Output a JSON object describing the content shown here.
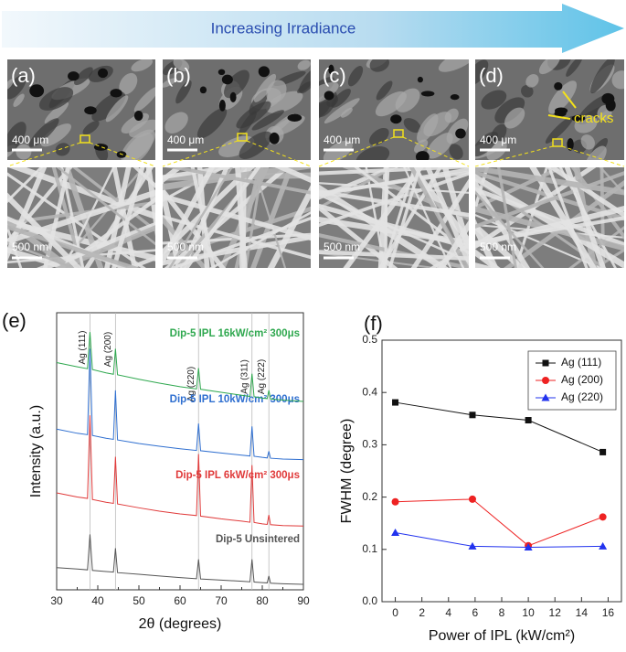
{
  "figure": {
    "arrow_text": "Increasing Irradiance",
    "panels": [
      {
        "label": "(a)",
        "scale_top": "400 μm",
        "scale_bottom": "500 nm"
      },
      {
        "label": "(b)",
        "scale_top": "400 μm",
        "scale_bottom": "500 nm"
      },
      {
        "label": "(c)",
        "scale_top": "400 μm",
        "scale_bottom": "500 nm"
      },
      {
        "label": "(d)",
        "scale_top": "400 μm",
        "scale_bottom": "500 nm"
      }
    ],
    "annotation": "cracks"
  },
  "chart_data": [
    {
      "type": "line",
      "panel_label": "(e)",
      "xlabel": "2θ  (degrees)",
      "ylabel": "Intensity (a.u.)",
      "x": [
        30,
        35,
        37.5,
        38.1,
        38.7,
        42,
        43.8,
        44.3,
        44.8,
        50,
        55,
        60,
        64.0,
        64.5,
        65.0,
        70,
        75,
        77.0,
        77.5,
        78.0,
        80,
        81.2,
        81.6,
        82.0,
        85,
        90
      ],
      "series": [
        {
          "name": "Dip-5  Unsintered",
          "color": "#555555",
          "values": [
            8,
            7.5,
            7.2,
            20,
            7,
            6.6,
            6.4,
            15,
            6.2,
            5.6,
            5,
            4.4,
            4,
            11,
            3.9,
            3.5,
            3.1,
            2.9,
            11,
            2.8,
            2.6,
            2.5,
            5,
            2.4,
            2.2,
            2
          ]
        },
        {
          "name": "Dip-5  IPL   6kW/cm² 300μs",
          "color": "#e03a3a",
          "values": [
            35,
            33.5,
            33,
            63,
            32.6,
            31.6,
            31.2,
            48,
            31,
            29.6,
            28.4,
            27.4,
            26.8,
            49,
            26.6,
            25.6,
            24.8,
            24.4,
            45,
            24.3,
            23.8,
            23.6,
            27,
            23.5,
            23.2,
            23
          ]
        },
        {
          "name": "Dip-5  IPL 10kW/cm² 300μs",
          "color": "#2f6fd0",
          "values": [
            58,
            56.5,
            56,
            87,
            55.7,
            54.7,
            54.3,
            72,
            54.1,
            52.8,
            51.8,
            50.9,
            50.3,
            60,
            50.2,
            49.4,
            48.6,
            48.3,
            59,
            48.2,
            47.8,
            47.6,
            50,
            47.5,
            47.2,
            47
          ]
        },
        {
          "name": "Dip-5  IPL 16kW/cm² 300μs",
          "color": "#2fa84f",
          "values": [
            82,
            80.5,
            79.8,
            93,
            79.5,
            78.3,
            77.8,
            87,
            77.6,
            76,
            74.6,
            73.3,
            72.5,
            80,
            72.4,
            71.3,
            70.2,
            69.8,
            78,
            69.7,
            69.2,
            69,
            72,
            68.9,
            68.5,
            68
          ]
        }
      ],
      "xlim": [
        30,
        90
      ],
      "ylim": [
        0,
        100
      ],
      "xticks": [
        30,
        40,
        50,
        60,
        70,
        80,
        90
      ],
      "xticks_minor": [
        35,
        45,
        55,
        65,
        75,
        85
      ],
      "reference_lines": [
        38.1,
        44.3,
        64.5,
        77.5,
        81.6
      ],
      "peak_labels": [
        "Ag (111)",
        "Ag (200)",
        "Ag (220)",
        "Ag (311)",
        "Ag (222)"
      ]
    },
    {
      "type": "line",
      "panel_label": "(f)",
      "xlabel": "Power of IPL (kW/cm²)",
      "ylabel": "FWHM (degree)",
      "x": [
        0,
        5.8,
        10,
        15.6
      ],
      "series": [
        {
          "name": "Ag (111)",
          "color": "#111111",
          "marker": "square",
          "values": [
            0.381,
            0.357,
            0.347,
            0.286
          ]
        },
        {
          "name": "Ag (200)",
          "color": "#ee2222",
          "marker": "circle",
          "values": [
            0.191,
            0.196,
            0.107,
            0.162
          ]
        },
        {
          "name": "Ag (220)",
          "color": "#2233ee",
          "marker": "triangle",
          "values": [
            0.132,
            0.106,
            0.104,
            0.106
          ]
        }
      ],
      "xlim": [
        -1,
        17
      ],
      "ylim": [
        0,
        0.5
      ],
      "xticks": [
        0,
        2,
        4,
        6,
        8,
        10,
        12,
        14,
        16
      ],
      "yticks": [
        {
          "value": 0,
          "label": "0.0"
        },
        0.1,
        0.2,
        0.3,
        0.4,
        0.5
      ],
      "legend": "upper right"
    }
  ]
}
